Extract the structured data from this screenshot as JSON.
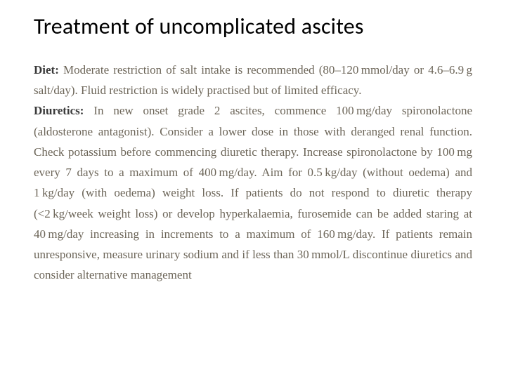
{
  "title": "Treatment of uncomplicated ascites",
  "sections": {
    "diet": {
      "label": "Diet:",
      "text": " Moderate restriction of salt intake is recommended (80–120 mmol/day or 4.6–6.9 g salt/day). Fluid restriction is widely practised but of limited efficacy."
    },
    "diuretics": {
      "label": "Diuretics:",
      "text": " In new onset grade 2 ascites, commence 100 mg/day spironolactone (aldosterone antagonist). Consider a lower dose in those with deranged renal function. Check potassium before commencing diuretic therapy. Increase spironolactone by 100 mg every 7 days to a maximum of 400 mg/day. Aim for 0.5 kg/day (without oedema) and 1 kg/day (with oedema) weight loss. If patients do not respond to diuretic therapy (<2 kg/week weight loss) or develop hyperkalaemia, furosemide can be added staring at 40 mg/day increasing in increments to a maximum of 160 mg/day. If patients remain unresponsive, measure urinary sodium and if less than 30 mmol/L discontinue diuretics and consider alternative management"
    }
  },
  "colors": {
    "background": "#ffffff",
    "title_color": "#000000",
    "body_text_color": "#6c6558",
    "label_color": "#3a3a3a"
  },
  "typography": {
    "title_fontsize": 32,
    "title_family": "Calibri",
    "body_fontsize": 17,
    "body_family": "Georgia",
    "line_height": 1.72,
    "body_align": "justify"
  }
}
